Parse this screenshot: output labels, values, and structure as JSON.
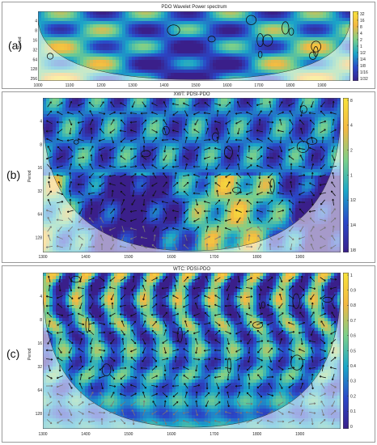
{
  "chart_data": [
    {
      "type": "heatmap",
      "panel_label": "(a)",
      "title": "PDO Wavelet Power spectrum",
      "ylabel": "Period",
      "x_ticks": [
        "1000",
        "1100",
        "1200",
        "1300",
        "1400",
        "1500",
        "1600",
        "1700",
        "1800",
        "1900"
      ],
      "xlim": [
        1000,
        1990
      ],
      "y_ticks": [
        "4",
        "8",
        "16",
        "32",
        "64",
        "128",
        "256"
      ],
      "y_scale": "log2",
      "ylim": [
        2,
        300
      ],
      "colorbar_ticks": [
        "32",
        "16",
        "8",
        "4",
        "2",
        "1",
        "1/2",
        "1/4",
        "1/8",
        "1/16",
        "1/32"
      ],
      "colormap": [
        "#3a1f8a",
        "#2a48c8",
        "#1ba6c8",
        "#7bd08a",
        "#f2b843",
        "#f8e23a"
      ],
      "cone_of_influence": true,
      "significance_contours": true,
      "phase_arrows": false
    },
    {
      "type": "heatmap",
      "panel_label": "(b)",
      "title": "XWT: PDSI-PDO",
      "ylabel": "Period",
      "x_ticks": [
        "1300",
        "1400",
        "1500",
        "1600",
        "1700",
        "1800",
        "1900"
      ],
      "xlim": [
        1300,
        1995
      ],
      "y_ticks": [
        "4",
        "8",
        "16",
        "32",
        "64",
        "128"
      ],
      "y_scale": "log2",
      "ylim": [
        2,
        200
      ],
      "colorbar_ticks": [
        "8",
        "4",
        "2",
        "1",
        "1/2",
        "1/4",
        "1/8"
      ],
      "colormap": [
        "#3a1f8a",
        "#2a48c8",
        "#1ba6c8",
        "#7bd08a",
        "#f2b843",
        "#f8e23a"
      ],
      "cone_of_influence": true,
      "significance_contours": true,
      "phase_arrows": true
    },
    {
      "type": "heatmap",
      "panel_label": "(c)",
      "title": "WTC: PDSI-PDO",
      "ylabel": "Period",
      "x_ticks": [
        "1300",
        "1400",
        "1500",
        "1600",
        "1700",
        "1800",
        "1900"
      ],
      "xlim": [
        1300,
        1995
      ],
      "y_ticks": [
        "4",
        "8",
        "16",
        "32",
        "64",
        "128"
      ],
      "y_scale": "log2",
      "ylim": [
        2,
        200
      ],
      "colorbar_ticks": [
        "1",
        "0.9",
        "0.8",
        "0.7",
        "0.6",
        "0.5",
        "0.4",
        "0.3",
        "0.2",
        "0.1",
        "0"
      ],
      "colormap": [
        "#3a1f8a",
        "#2a48c8",
        "#1ba6c8",
        "#7bd08a",
        "#f2b843",
        "#f8e23a"
      ],
      "cone_of_influence": true,
      "significance_contours": true,
      "phase_arrows": true
    }
  ]
}
